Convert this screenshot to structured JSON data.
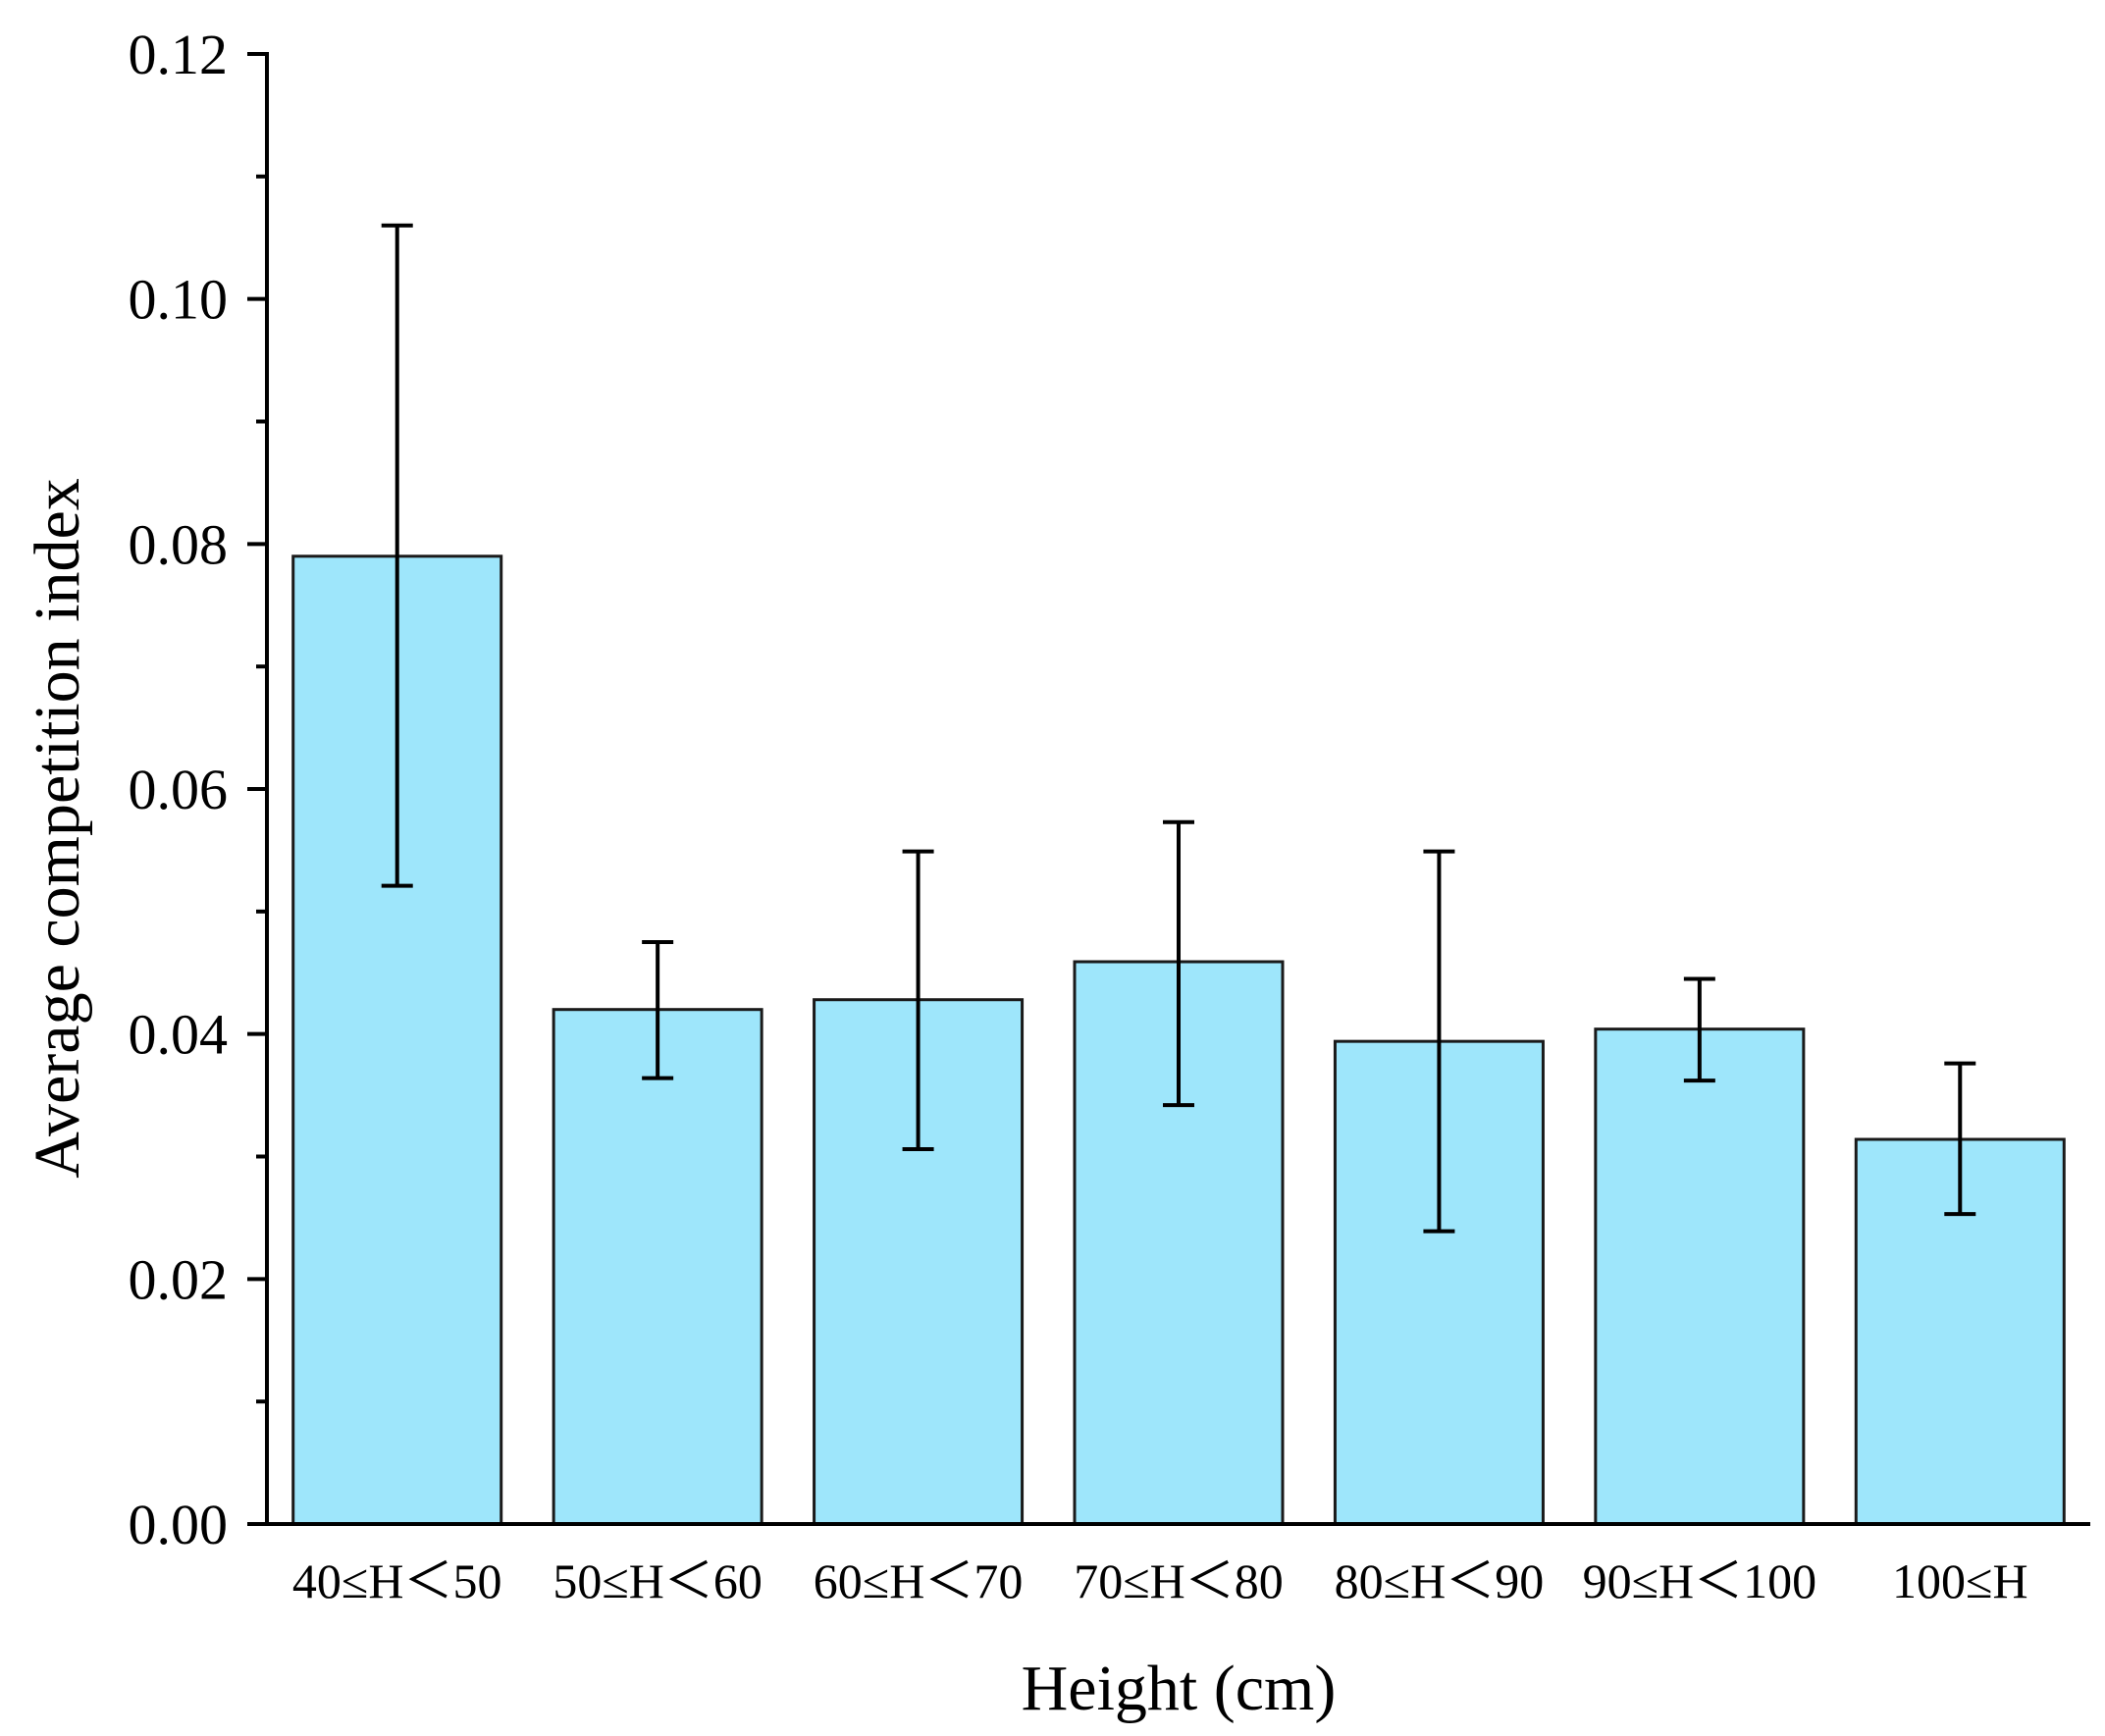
{
  "chart_data": {
    "type": "bar",
    "title": "",
    "xlabel": "Height (cm)",
    "ylabel": "Average competition index",
    "categories": [
      "40≤H＜50",
      "50≤H＜60",
      "60≤H＜70",
      "70≤H＜80",
      "80≤H＜90",
      "90≤H＜100",
      "100≤H"
    ],
    "values": [
      0.079,
      0.042,
      0.0428,
      0.0459,
      0.0394,
      0.0404,
      0.0314
    ],
    "error_upper": [
      0.106,
      0.0475,
      0.0549,
      0.0573,
      0.0549,
      0.0445,
      0.0376
    ],
    "error_lower": [
      0.0521,
      0.0364,
      0.0306,
      0.0342,
      0.0239,
      0.0362,
      0.0253
    ],
    "ylim": [
      0,
      0.12
    ],
    "yticks": [
      "0.00",
      "0.02",
      "0.04",
      "0.06",
      "0.08",
      "0.10",
      "0.12"
    ],
    "ytick_values": [
      0,
      0.02,
      0.04,
      0.06,
      0.08,
      0.1,
      0.12
    ],
    "grid": false,
    "legend": "none",
    "colors": {
      "bar_fill": "#9EE6FB",
      "bar_stroke": "#1a1a1a",
      "axis": "#000000",
      "error_bar": "#000000"
    }
  }
}
